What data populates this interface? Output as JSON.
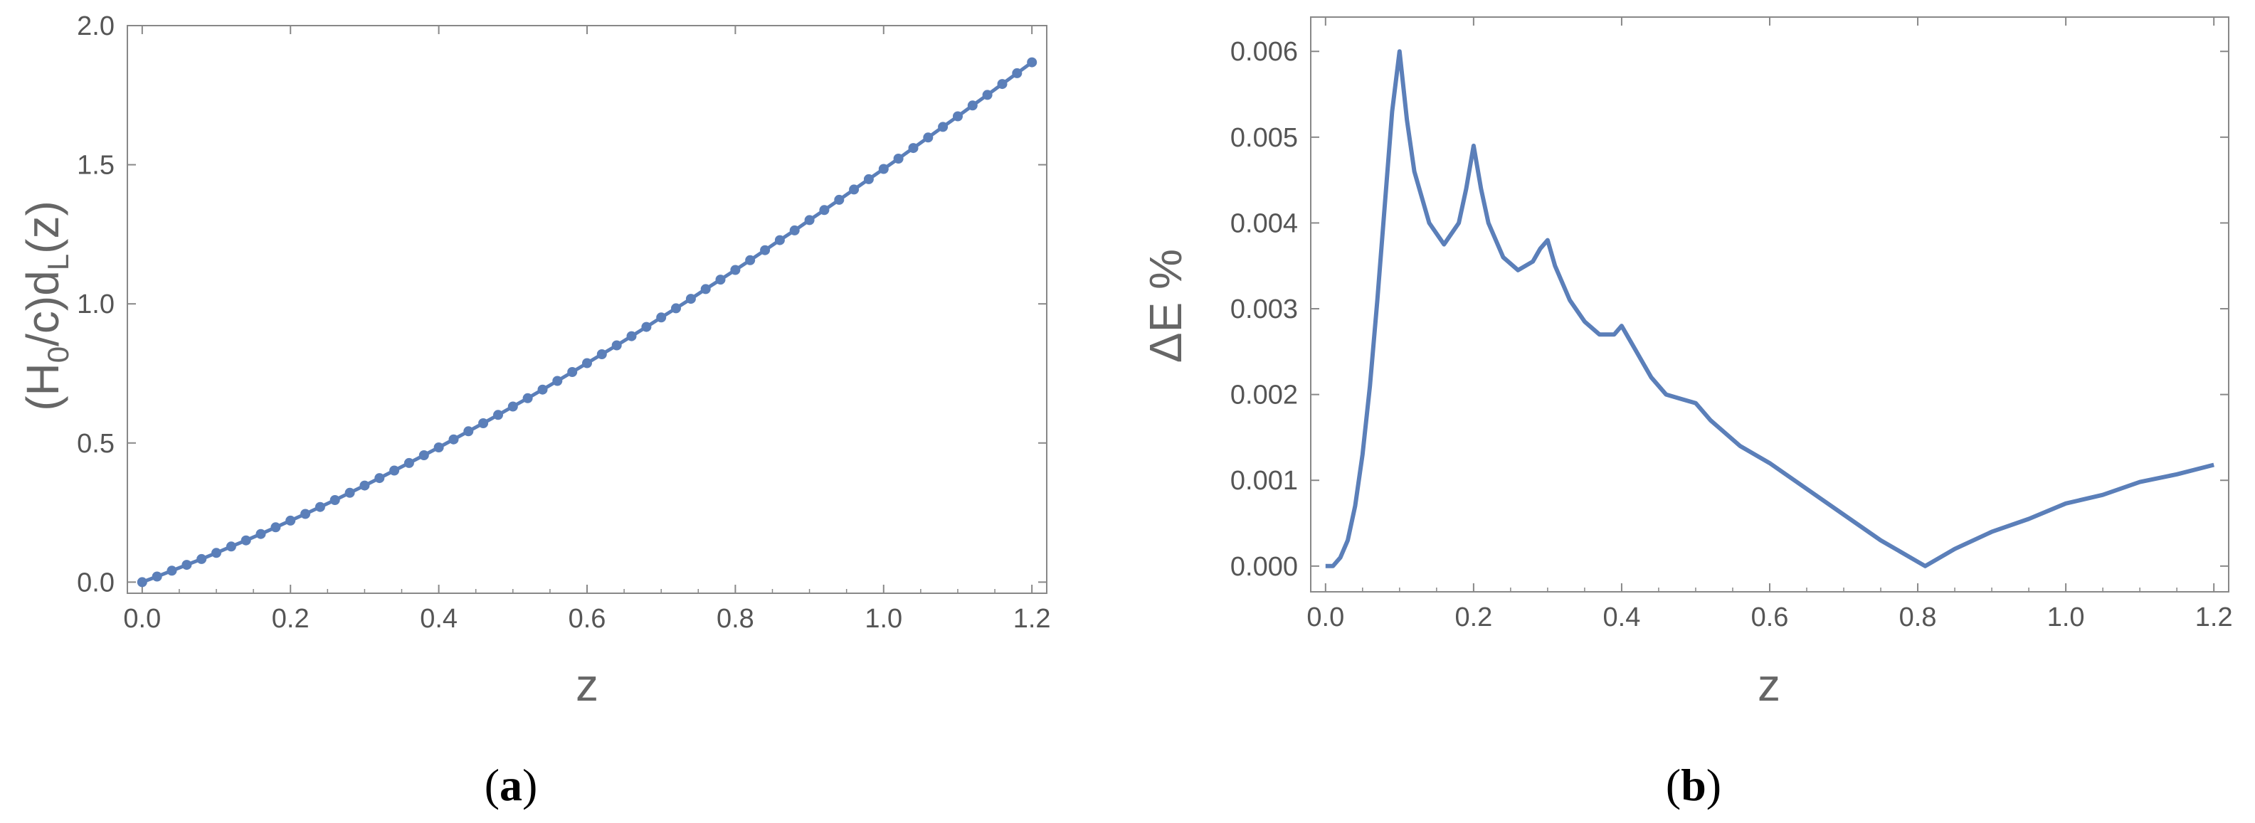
{
  "chart_data": [
    {
      "type": "scatter",
      "panel_label": "a",
      "xlabel": "z",
      "ylabel": {
        "pre": "(H",
        "sub1": "0",
        "mid": "/c)d",
        "sub2": "L",
        "post": "(z)"
      },
      "xlim": [
        -0.02,
        1.22
      ],
      "ylim": [
        -0.04,
        2.0
      ],
      "xticks": [
        "0.0",
        "0.2",
        "0.4",
        "0.6",
        "0.8",
        "1.0",
        "1.2"
      ],
      "yticks": [
        "0.0",
        "0.5",
        "1.0",
        "1.5",
        "2.0"
      ],
      "grid": false,
      "colors": {
        "series": "#5b7fb9",
        "axis": "#888888"
      },
      "series": [
        {
          "style": "line-with-points",
          "x": [
            0.0,
            0.02,
            0.04,
            0.06,
            0.08,
            0.1,
            0.12,
            0.14,
            0.16,
            0.18,
            0.2,
            0.22,
            0.24,
            0.26,
            0.28,
            0.3,
            0.32,
            0.34,
            0.36,
            0.38,
            0.4,
            0.42,
            0.44,
            0.46,
            0.48,
            0.5,
            0.52,
            0.54,
            0.56,
            0.58,
            0.6,
            0.62,
            0.64,
            0.66,
            0.68,
            0.7,
            0.72,
            0.74,
            0.76,
            0.78,
            0.8,
            0.82,
            0.84,
            0.86,
            0.88,
            0.9,
            0.92,
            0.94,
            0.96,
            0.98,
            1.0,
            1.02,
            1.04,
            1.06,
            1.08,
            1.1,
            1.12,
            1.14,
            1.16,
            1.18,
            1.2
          ],
          "y": [
            0.0,
            0.02,
            0.041,
            0.062,
            0.083,
            0.105,
            0.128,
            0.15,
            0.173,
            0.197,
            0.221,
            0.245,
            0.27,
            0.295,
            0.321,
            0.347,
            0.374,
            0.401,
            0.428,
            0.456,
            0.484,
            0.513,
            0.542,
            0.571,
            0.601,
            0.631,
            0.661,
            0.692,
            0.723,
            0.755,
            0.787,
            0.819,
            0.851,
            0.884,
            0.917,
            0.951,
            0.984,
            1.018,
            1.053,
            1.087,
            1.122,
            1.157,
            1.193,
            1.229,
            1.264,
            1.301,
            1.337,
            1.374,
            1.411,
            1.448,
            1.485,
            1.522,
            1.56,
            1.598,
            1.636,
            1.674,
            1.713,
            1.751,
            1.79,
            1.829,
            1.868
          ]
        }
      ]
    },
    {
      "type": "line",
      "panel_label": "b",
      "xlabel": "z",
      "ylabel": "ΔE %",
      "xlim": [
        -0.02,
        1.22
      ],
      "ylim": [
        -0.0003,
        0.0064
      ],
      "xticks": [
        "0.0",
        "0.2",
        "0.4",
        "0.6",
        "0.8",
        "1.0",
        "1.2"
      ],
      "yticks": [
        "0.000",
        "0.001",
        "0.002",
        "0.003",
        "0.004",
        "0.005",
        "0.006"
      ],
      "grid": false,
      "colors": {
        "series": "#5b7fb9",
        "axis": "#888888"
      },
      "series": [
        {
          "style": "line",
          "x": [
            0.0,
            0.01,
            0.02,
            0.03,
            0.04,
            0.05,
            0.06,
            0.07,
            0.08,
            0.09,
            0.1,
            0.11,
            0.12,
            0.14,
            0.16,
            0.18,
            0.19,
            0.2,
            0.21,
            0.22,
            0.24,
            0.26,
            0.28,
            0.29,
            0.3,
            0.31,
            0.33,
            0.35,
            0.37,
            0.39,
            0.4,
            0.42,
            0.44,
            0.46,
            0.48,
            0.5,
            0.52,
            0.56,
            0.6,
            0.65,
            0.7,
            0.75,
            0.8,
            0.81,
            0.85,
            0.9,
            0.95,
            1.0,
            1.05,
            1.1,
            1.15,
            1.2
          ],
          "y": [
            0.0,
            0.0,
            0.0001,
            0.0003,
            0.0007,
            0.0013,
            0.0021,
            0.0031,
            0.0042,
            0.0053,
            0.006,
            0.0052,
            0.0046,
            0.004,
            0.00375,
            0.004,
            0.0044,
            0.0049,
            0.0044,
            0.004,
            0.0036,
            0.00345,
            0.00355,
            0.0037,
            0.0038,
            0.0035,
            0.0031,
            0.00285,
            0.0027,
            0.0027,
            0.0028,
            0.0025,
            0.0022,
            0.002,
            0.00195,
            0.0019,
            0.0017,
            0.0014,
            0.0012,
            0.0009,
            0.0006,
            0.0003,
            5e-05,
            0.0,
            0.0002,
            0.0004,
            0.00055,
            0.00073,
            0.00083,
            0.00098,
            0.00107,
            0.00118
          ]
        }
      ]
    }
  ]
}
